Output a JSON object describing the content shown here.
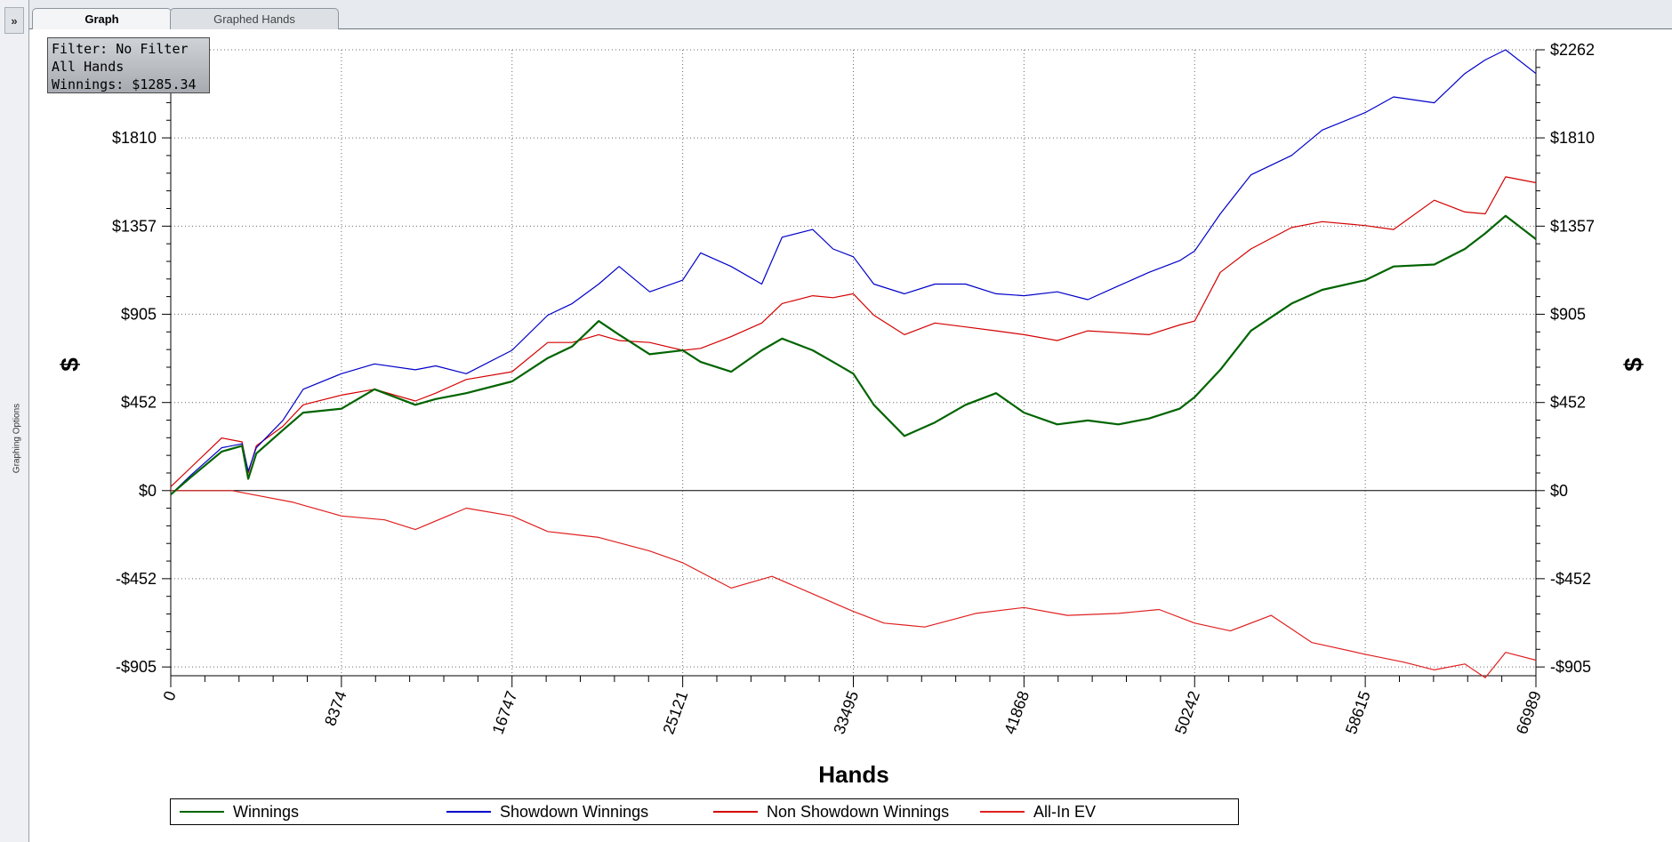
{
  "sidebar": {
    "expand_label": "»",
    "title": "Graphing Options"
  },
  "tabs": [
    {
      "label": "Graph",
      "active": true
    },
    {
      "label": "Graphed Hands",
      "active": false
    }
  ],
  "info_box": {
    "line1": "Filter: No Filter",
    "line2": "All Hands",
    "line3": "Winnings: $1285.34"
  },
  "colors": {
    "winnings": "#006400",
    "showdown": "#0000c8",
    "non_showdown": "#d40000",
    "allin_ev": "#e02020"
  },
  "chart_data": {
    "type": "line",
    "title": "",
    "xlabel": "Hands",
    "ylabel": "$",
    "xlim": [
      0,
      66989
    ],
    "ylim": [
      -950,
      2262
    ],
    "x_ticks": [
      0,
      8374,
      16747,
      25121,
      33495,
      41868,
      50242,
      58615,
      66989
    ],
    "x_tick_labels": [
      "0",
      "8374",
      "16747",
      "25121",
      "33495",
      "41868",
      "50242",
      "58615",
      "66989"
    ],
    "y_ticks": [
      -905,
      -452,
      0,
      452,
      905,
      1357,
      1810,
      2262
    ],
    "y_tick_labels": [
      "-$905",
      "-$452",
      "$0",
      "$452",
      "$905",
      "$1357",
      "$1810",
      "$2262"
    ],
    "grid": true,
    "legend_position": "bottom",
    "series": [
      {
        "name": "Winnings",
        "color": "#006400",
        "x": [
          0,
          1000,
          2500,
          3500,
          3800,
          4200,
          5500,
          6500,
          8374,
          10000,
          12000,
          13000,
          14500,
          16747,
          18500,
          19700,
          21000,
          22000,
          23500,
          25121,
          26000,
          27500,
          29000,
          30000,
          31500,
          32500,
          33495,
          34500,
          36000,
          37500,
          39000,
          40500,
          41868,
          43500,
          45000,
          46500,
          48000,
          49500,
          50242,
          51500,
          53000,
          55000,
          56500,
          58615,
          60000,
          62000,
          63500,
          64500,
          65500,
          66989
        ],
        "y": [
          -20,
          70,
          200,
          230,
          60,
          190,
          310,
          400,
          420,
          520,
          440,
          470,
          500,
          560,
          680,
          740,
          870,
          800,
          700,
          720,
          660,
          610,
          720,
          780,
          720,
          660,
          600,
          440,
          280,
          350,
          440,
          500,
          400,
          340,
          360,
          340,
          370,
          420,
          480,
          620,
          820,
          960,
          1030,
          1080,
          1150,
          1160,
          1240,
          1320,
          1410,
          1290
        ]
      },
      {
        "name": "Showdown Winnings",
        "color": "#0000c8",
        "x": [
          0,
          1000,
          2500,
          3500,
          3800,
          4200,
          5500,
          6500,
          8374,
          10000,
          12000,
          13000,
          14500,
          16747,
          18500,
          19700,
          21000,
          22000,
          23500,
          25121,
          26000,
          27500,
          29000,
          30000,
          31500,
          32500,
          33495,
          34500,
          36000,
          37500,
          39000,
          40500,
          41868,
          43500,
          45000,
          46500,
          48000,
          49500,
          50242,
          51500,
          53000,
          55000,
          56500,
          58615,
          60000,
          62000,
          63500,
          64500,
          65500,
          66989
        ],
        "y": [
          -20,
          80,
          220,
          240,
          100,
          220,
          360,
          520,
          600,
          650,
          620,
          640,
          600,
          720,
          900,
          960,
          1060,
          1150,
          1020,
          1080,
          1220,
          1150,
          1060,
          1300,
          1340,
          1240,
          1200,
          1060,
          1010,
          1060,
          1060,
          1010,
          1000,
          1020,
          980,
          1050,
          1120,
          1180,
          1230,
          1420,
          1620,
          1720,
          1850,
          1940,
          2020,
          1990,
          2140,
          2210,
          2262,
          2140
        ]
      },
      {
        "name": "Non Showdown Winnings",
        "color": "#d40000",
        "x": [
          0,
          1000,
          2500,
          3500,
          3800,
          4200,
          5500,
          6500,
          8374,
          10000,
          12000,
          13000,
          14500,
          16747,
          18500,
          19700,
          21000,
          22000,
          23500,
          25121,
          26000,
          27500,
          29000,
          30000,
          31500,
          32500,
          33495,
          34500,
          36000,
          37500,
          39000,
          40500,
          41868,
          43500,
          45000,
          46500,
          48000,
          49500,
          50242,
          51500,
          53000,
          55000,
          56500,
          58615,
          60000,
          62000,
          63500,
          64500,
          65500,
          66989
        ],
        "y": [
          20,
          120,
          270,
          250,
          90,
          230,
          330,
          440,
          490,
          520,
          460,
          500,
          570,
          610,
          760,
          760,
          800,
          770,
          760,
          720,
          730,
          790,
          860,
          960,
          1000,
          990,
          1010,
          900,
          800,
          860,
          840,
          820,
          800,
          770,
          820,
          810,
          800,
          850,
          870,
          1120,
          1240,
          1350,
          1380,
          1360,
          1340,
          1490,
          1430,
          1420,
          1610,
          1580
        ]
      },
      {
        "name": "All-In EV",
        "color": "#e02020",
        "x": [
          0,
          3000,
          6000,
          8374,
          10500,
          12000,
          14500,
          16747,
          18500,
          21000,
          23500,
          25121,
          27500,
          29500,
          31500,
          33495,
          35000,
          37000,
          39500,
          41868,
          44000,
          46500,
          48500,
          50242,
          52000,
          54000,
          56000,
          58615,
          60500,
          62000,
          63500,
          64500,
          65500,
          66989
        ],
        "y": [
          0,
          0,
          -60,
          -130,
          -150,
          -200,
          -90,
          -130,
          -210,
          -240,
          -310,
          -370,
          -500,
          -440,
          -530,
          -620,
          -680,
          -700,
          -630,
          -600,
          -640,
          -630,
          -610,
          -680,
          -720,
          -640,
          -780,
          -840,
          -880,
          -920,
          -890,
          -960,
          -830,
          -870
        ]
      }
    ]
  },
  "legend": [
    {
      "label": "Winnings",
      "color": "#006400"
    },
    {
      "label": "Showdown Winnings",
      "color": "#0000c8"
    },
    {
      "label": "Non Showdown Winnings",
      "color": "#d40000"
    },
    {
      "label": "All-In EV",
      "color": "#e02020"
    }
  ]
}
